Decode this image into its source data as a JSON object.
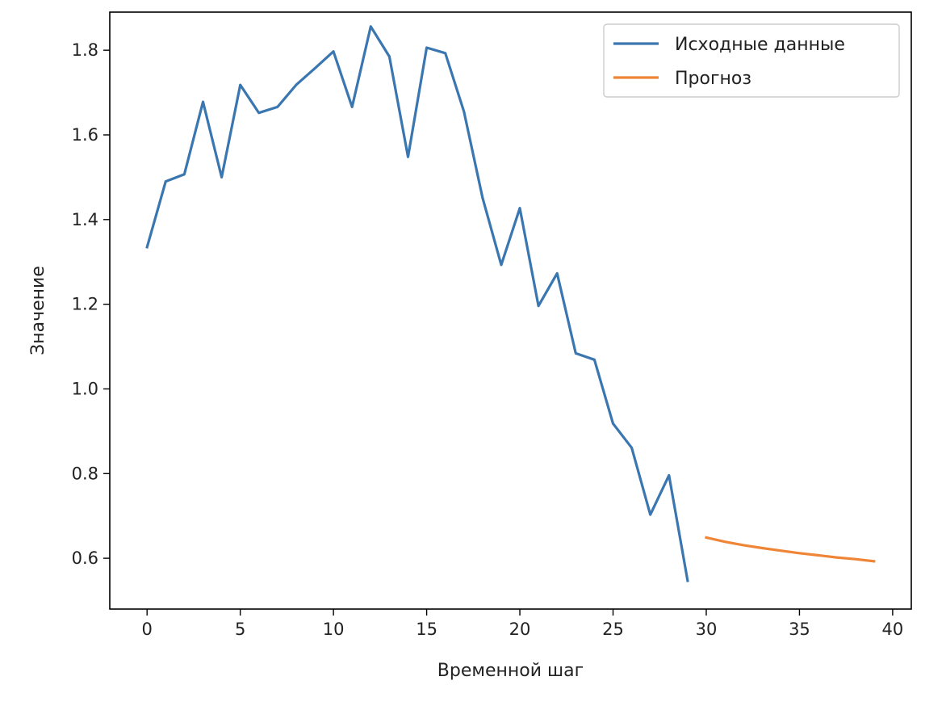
{
  "chart_data": {
    "type": "line",
    "title": "",
    "xlabel": "Временной шаг",
    "ylabel": "Значение",
    "xlim": [
      -2,
      41
    ],
    "ylim": [
      0.48,
      1.89
    ],
    "x_ticks": [
      0,
      5,
      10,
      15,
      20,
      25,
      30,
      35,
      40
    ],
    "y_ticks": [
      0.6,
      0.8,
      1.0,
      1.2,
      1.4,
      1.6,
      1.8
    ],
    "grid": false,
    "legend_position": "top-right",
    "series": [
      {
        "name": "Исходные данные",
        "color": "#3a76af",
        "x": [
          0,
          1,
          2,
          3,
          4,
          5,
          6,
          7,
          8,
          9,
          10,
          11,
          12,
          13,
          14,
          15,
          16,
          17,
          18,
          19,
          20,
          21,
          22,
          23,
          24,
          25,
          26,
          27,
          28,
          29
        ],
        "y": [
          1.335,
          1.49,
          1.507,
          1.678,
          1.5,
          1.718,
          1.652,
          1.666,
          1.718,
          1.757,
          1.797,
          1.666,
          1.856,
          1.785,
          1.548,
          1.806,
          1.793,
          1.655,
          1.451,
          1.293,
          1.427,
          1.196,
          1.273,
          1.084,
          1.069,
          0.918,
          0.861,
          0.703,
          0.796,
          0.547
        ]
      },
      {
        "name": "Прогноз",
        "color": "#ef8536",
        "x": [
          30,
          31,
          32,
          33,
          34,
          35,
          36,
          37,
          38,
          39
        ],
        "y": [
          0.649,
          0.639,
          0.631,
          0.624,
          0.618,
          0.612,
          0.607,
          0.602,
          0.598,
          0.593
        ]
      }
    ]
  }
}
